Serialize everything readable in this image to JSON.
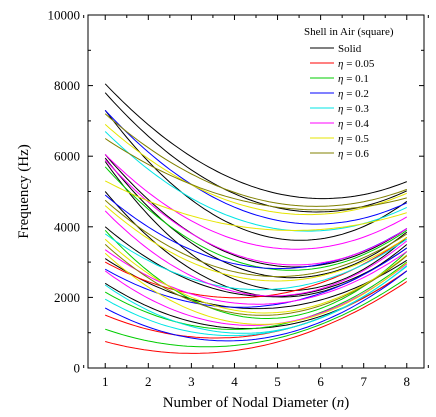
{
  "chart_data": {
    "type": "line",
    "title": "",
    "xlabel": "Number of Nodal Diameter (",
    "xlabel_var": "n",
    "xlabel_end": ")",
    "ylabel": "Frequency (Hz)",
    "xlim": [
      0.6,
      8.4
    ],
    "ylim": [
      0,
      10000
    ],
    "x_ticks": [
      1,
      2,
      3,
      4,
      5,
      6,
      7,
      8
    ],
    "y_ticks": [
      0,
      2000,
      4000,
      6000,
      8000,
      10000
    ],
    "grid": false,
    "legend_position": "top-right",
    "legend_title": "Shell in Air (square)",
    "x": [
      1,
      8
    ],
    "series": [
      {
        "name": "Solid",
        "color": "#000000",
        "label_prefix": "",
        "label_value": "Solid",
        "curves": [
          [
            8050,
            4800,
            5280
          ],
          [
            7800,
            4420,
            5020
          ],
          [
            7300,
            3620,
            4720
          ],
          [
            6050,
            2900,
            3950
          ],
          [
            5950,
            2620,
            3850
          ],
          [
            5850,
            2300,
            3700
          ],
          [
            5000,
            2100,
            3500
          ],
          [
            4000,
            2050,
            3400
          ],
          [
            3100,
            1700,
            3050
          ],
          [
            2400,
            1150,
            2750
          ]
        ]
      },
      {
        "name": "η = 0.05",
        "color": "#ff0000",
        "label_prefix": "η",
        "label_value": " = 0.05",
        "curves": [
          [
            3000,
            2000,
            3700
          ],
          [
            1500,
            850,
            2750
          ],
          [
            750,
            420,
            2450
          ]
        ]
      },
      {
        "name": "η = 0.1",
        "color": "#00cc00",
        "label_prefix": "η",
        "label_value": " = 0.1",
        "curves": [
          [
            5700,
            2800,
            3900
          ],
          [
            3900,
            1500,
            3300
          ],
          [
            2150,
            1100,
            3000
          ],
          [
            1100,
            600,
            2550
          ]
        ]
      },
      {
        "name": "η = 0.2",
        "color": "#0000ff",
        "label_prefix": "η",
        "label_value": " = 0.2",
        "curves": [
          [
            7300,
            4080,
            4680
          ],
          [
            4900,
            2820,
            3950
          ],
          [
            2800,
            1720,
            3400
          ],
          [
            1700,
            780,
            2750
          ]
        ]
      },
      {
        "name": "η = 0.3",
        "color": "#00e5e5",
        "label_prefix": "η",
        "label_value": " = 0.3",
        "curves": [
          [
            6700,
            3880,
            4550
          ],
          [
            3800,
            2220,
            3650
          ],
          [
            2350,
            1020,
            2900
          ],
          [
            1950,
            930,
            2880
          ]
        ]
      },
      {
        "name": "η = 0.4",
        "color": "#ff00ff",
        "label_prefix": "η",
        "label_value": " = 0.4",
        "curves": [
          [
            6050,
            3370,
            4280
          ],
          [
            5900,
            2950,
            3950
          ],
          [
            4450,
            2080,
            3600
          ],
          [
            3350,
            1820,
            3300
          ],
          [
            2750,
            1250,
            2950
          ]
        ]
      },
      {
        "name": "η = 0.5",
        "color": "#e5e500",
        "label_prefix": "η",
        "label_value": " = 0.5",
        "curves": [
          [
            6900,
            4350,
            4950
          ],
          [
            5300,
            3900,
            4400
          ],
          [
            4600,
            2480,
            3700
          ],
          [
            3650,
            1620,
            3200
          ],
          [
            3250,
            1320,
            2980
          ]
        ]
      },
      {
        "name": "η = 0.6",
        "color": "#808000",
        "label_prefix": "η",
        "label_value": " = 0.6",
        "curves": [
          [
            7200,
            4580,
            5060
          ],
          [
            6500,
            4480,
            4820
          ],
          [
            4750,
            2600,
            3800
          ],
          [
            3500,
            1550,
            3180
          ]
        ]
      }
    ]
  }
}
